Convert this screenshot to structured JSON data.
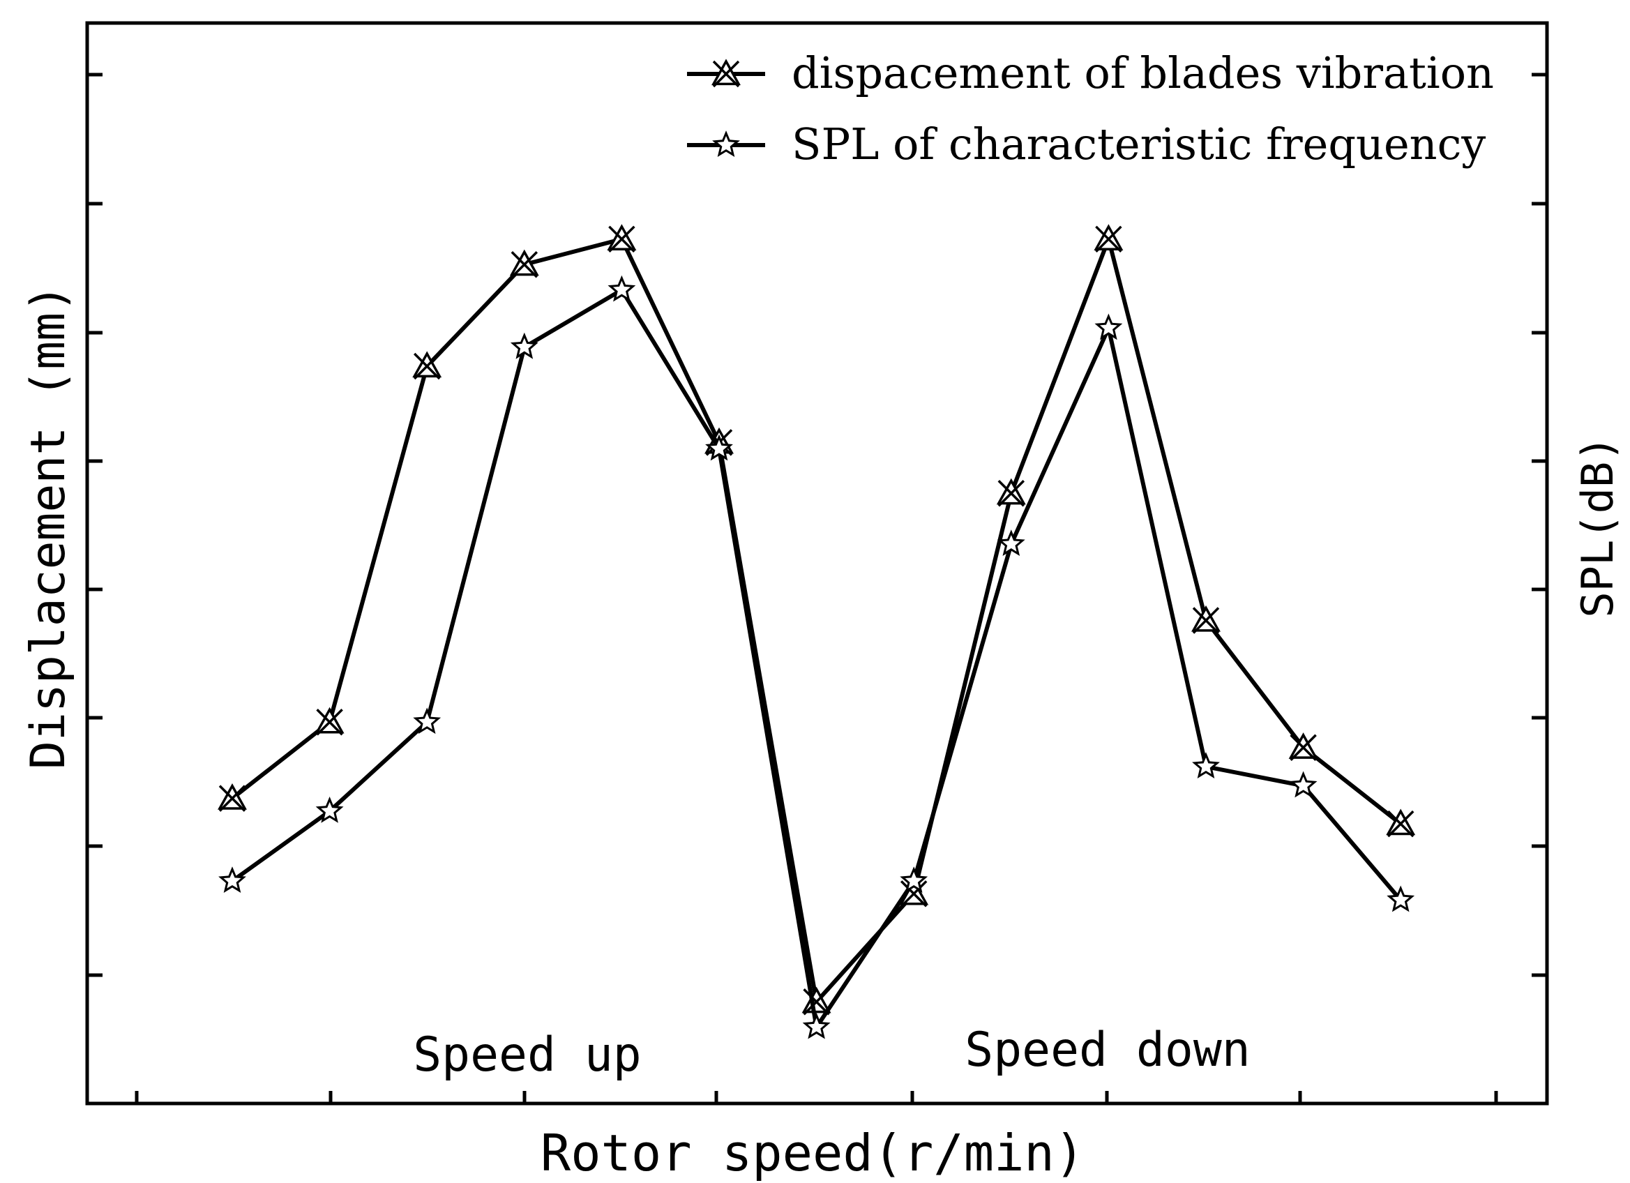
{
  "chart_data": {
    "type": "line",
    "title": "",
    "xlabel": "Rotor speed(r/min)",
    "ylabel_left": "Displacement  (mm)",
    "ylabel_right": "SPL(dB)",
    "x_tick_labels": [],
    "y_tick_labels": [],
    "ylim": [
      0,
      17
    ],
    "x_points": [
      1,
      2,
      3,
      4,
      5,
      6,
      7,
      8,
      9,
      10,
      11,
      12,
      13
    ],
    "series": [
      {
        "name": "dispacement of blades vibration",
        "marker": "crossed-triangle",
        "values": [
          4.8,
          6.0,
          11.6,
          13.2,
          13.6,
          10.4,
          1.6,
          3.3,
          9.6,
          13.6,
          7.6,
          5.6,
          4.4
        ]
      },
      {
        "name": "SPL of characteristic frequency",
        "marker": "star",
        "values": [
          3.5,
          4.6,
          6.0,
          11.9,
          12.8,
          10.3,
          1.2,
          3.5,
          8.8,
          12.2,
          5.3,
          5.0,
          3.2
        ]
      }
    ],
    "annotations": [
      {
        "text": "Speed up",
        "near_x": 3.5
      },
      {
        "text": "Speed down",
        "near_x": 9.0
      }
    ],
    "legend": "top-right",
    "grid": false
  }
}
